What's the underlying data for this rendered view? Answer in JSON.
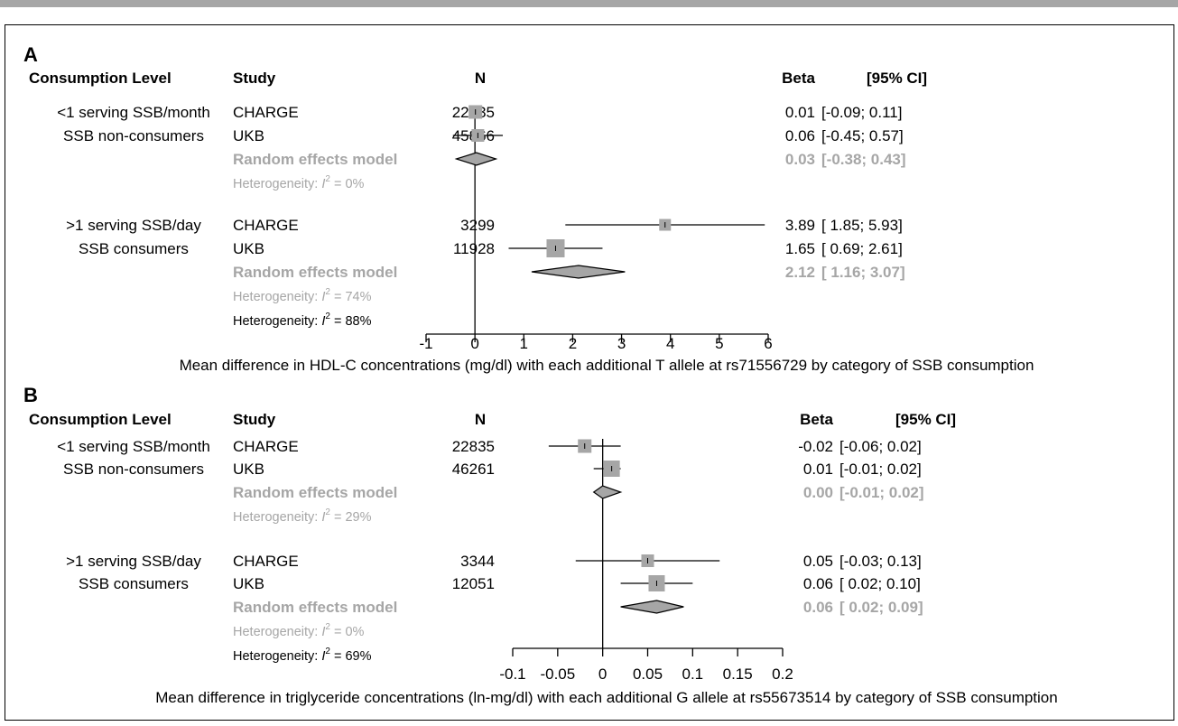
{
  "style": {
    "gray": "#a6a6a6",
    "box_fill": "#a6a6a6",
    "line": "#000000"
  },
  "chart_data": [
    {
      "type": "forest",
      "panel_letter": "A",
      "headers": {
        "level": "Consumption Level",
        "study": "Study",
        "n": "N",
        "beta": "Beta",
        "ci": "[95% CI]"
      },
      "xlabel": "Mean  difference in HDL-C concentrations (mg/dl) with each additional T allele at rs71556729 by category of SSB consumption",
      "xlim": [
        -1,
        6
      ],
      "ticks": [
        "-1",
        "0",
        "1",
        "2",
        "3",
        "4",
        "5",
        "6"
      ],
      "overall_heterogeneity": {
        "prefix": "Heterogeneity: ",
        "symbol": "I",
        "sup": "2",
        "suffix": " = 88%"
      },
      "groups": [
        {
          "level": [
            "<1 serving SSB/month",
            "SSB non-consumers"
          ],
          "studies": [
            {
              "study": "CHARGE",
              "n": "22835",
              "beta": 0.01,
              "lo": -0.09,
              "hi": 0.11,
              "beta_text": "0.01",
              "ci_text": "[-0.09; 0.11]"
            },
            {
              "study": "UKB",
              "n": "45866",
              "beta": 0.06,
              "lo": -0.45,
              "hi": 0.57,
              "beta_text": "0.06",
              "ci_text": "[-0.45; 0.57]"
            }
          ],
          "pooled": {
            "label": "Random effects model",
            "beta": 0.03,
            "lo": -0.38,
            "hi": 0.43,
            "beta_text": "0.03",
            "ci_text": "[-0.38; 0.43]"
          },
          "heterogeneity": {
            "prefix": "Heterogeneity: ",
            "symbol": "I",
            "sup": "2",
            "suffix": " = 0%"
          }
        },
        {
          "level": [
            ">1 serving SSB/day",
            "SSB consumers"
          ],
          "studies": [
            {
              "study": "CHARGE",
              "n": "3299",
              "beta": 3.89,
              "lo": 1.85,
              "hi": 5.93,
              "beta_text": "3.89",
              "ci_text": "[ 1.85; 5.93]"
            },
            {
              "study": "UKB",
              "n": "11928",
              "beta": 1.65,
              "lo": 0.69,
              "hi": 2.61,
              "beta_text": "1.65",
              "ci_text": "[ 0.69; 2.61]"
            }
          ],
          "pooled": {
            "label": "Random effects model",
            "beta": 2.12,
            "lo": 1.16,
            "hi": 3.07,
            "beta_text": "2.12",
            "ci_text": "[ 1.16; 3.07]"
          },
          "heterogeneity": {
            "prefix": "Heterogeneity: ",
            "symbol": "I",
            "sup": "2",
            "suffix": " = 74%"
          }
        }
      ]
    },
    {
      "type": "forest",
      "panel_letter": "B",
      "headers": {
        "level": "Consumption Level",
        "study": "Study",
        "n": "N",
        "beta": "Beta",
        "ci": "[95% CI]"
      },
      "xlabel": "Mean  difference in triglyceride concentrations (ln-mg/dl) with each additional G allele at rs55673514 by category of SSB consumption",
      "xlim": [
        -0.1,
        0.2
      ],
      "ticks": [
        "-0.1",
        "-0.05",
        "0",
        "0.05",
        "0.1",
        "0.15",
        "0.2"
      ],
      "overall_heterogeneity": {
        "prefix": "Heterogeneity: ",
        "symbol": "I",
        "sup": "2",
        "suffix": " = 69%"
      },
      "groups": [
        {
          "level": [
            "<1 serving SSB/month",
            "SSB non-consumers"
          ],
          "studies": [
            {
              "study": "CHARGE",
              "n": "22835",
              "beta": -0.02,
              "lo": -0.06,
              "hi": 0.02,
              "beta_text": "-0.02",
              "ci_text": "[-0.06; 0.02]"
            },
            {
              "study": "UKB",
              "n": "46261",
              "beta": 0.01,
              "lo": -0.01,
              "hi": 0.02,
              "beta_text": "0.01",
              "ci_text": "[-0.01; 0.02]"
            }
          ],
          "pooled": {
            "label": "Random effects model",
            "beta": 0.0,
            "lo": -0.01,
            "hi": 0.02,
            "beta_text": "0.00",
            "ci_text": "[-0.01; 0.02]"
          },
          "heterogeneity": {
            "prefix": "Heterogeneity: ",
            "symbol": "I",
            "sup": "2",
            "suffix": " = 29%"
          }
        },
        {
          "level": [
            ">1 serving SSB/day",
            "SSB consumers"
          ],
          "studies": [
            {
              "study": "CHARGE",
              "n": "3344",
              "beta": 0.05,
              "lo": -0.03,
              "hi": 0.13,
              "beta_text": "0.05",
              "ci_text": "[-0.03; 0.13]"
            },
            {
              "study": "UKB",
              "n": "12051",
              "beta": 0.06,
              "lo": 0.02,
              "hi": 0.1,
              "beta_text": "0.06",
              "ci_text": "[ 0.02; 0.10]"
            }
          ],
          "pooled": {
            "label": "Random effects model",
            "beta": 0.06,
            "lo": 0.02,
            "hi": 0.09,
            "beta_text": "0.06",
            "ci_text": "[ 0.02; 0.09]"
          },
          "heterogeneity": {
            "prefix": "Heterogeneity: ",
            "symbol": "I",
            "sup": "2",
            "suffix": " = 0%"
          }
        }
      ]
    }
  ]
}
